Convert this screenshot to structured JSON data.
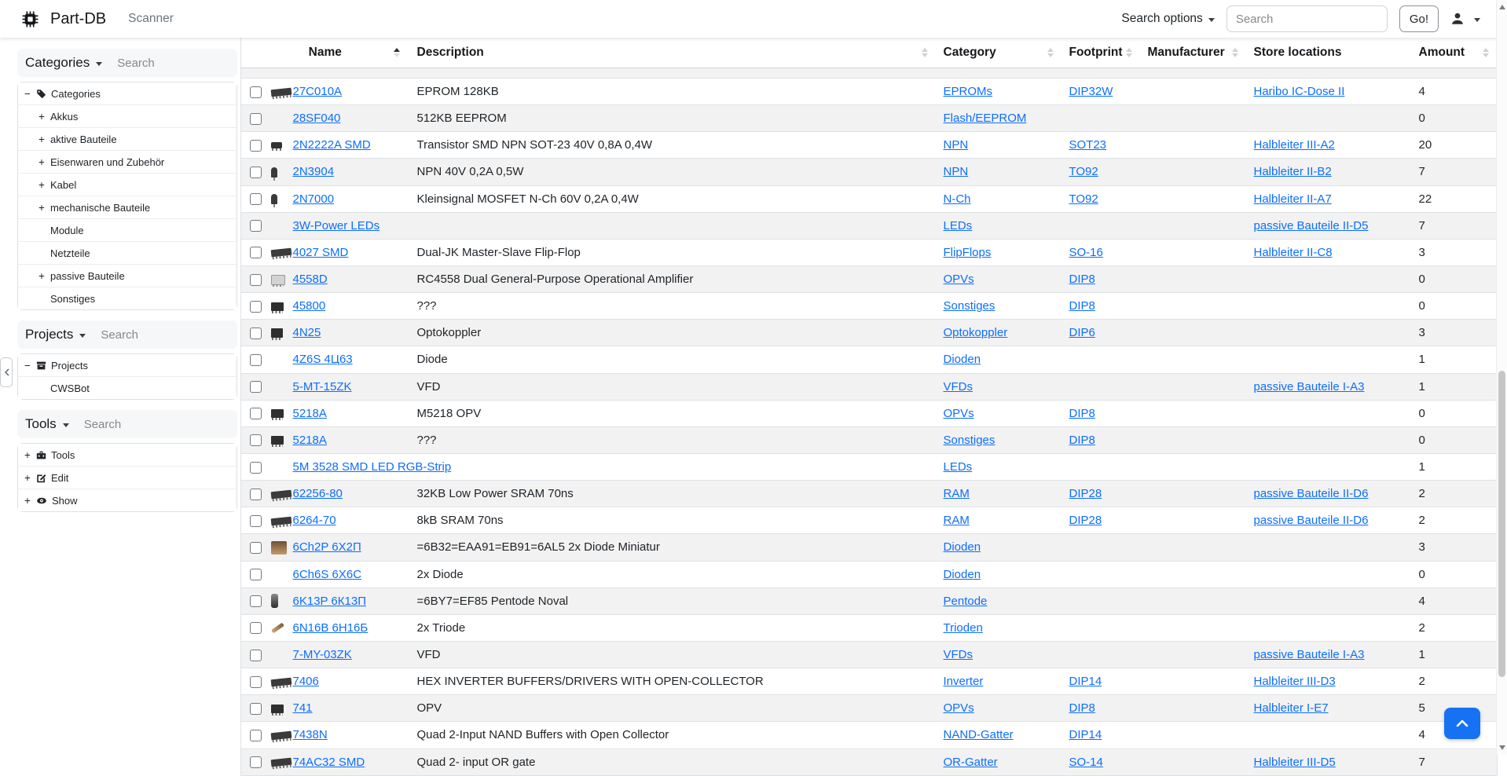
{
  "navbar": {
    "brand": "Part-DB",
    "scanner_label": "Scanner",
    "search_options_label": "Search options",
    "search_placeholder": "Search",
    "go_label": "Go!"
  },
  "sidebar": {
    "sections": [
      {
        "title": "Categories",
        "search_placeholder": "Search",
        "tree": [
          {
            "exp": "minus",
            "icon": "tag-icon",
            "label": "Categories",
            "level": 0
          },
          {
            "exp": "plus",
            "icon": "",
            "label": "Akkus",
            "level": 1
          },
          {
            "exp": "plus",
            "icon": "",
            "label": "aktive Bauteile",
            "level": 1
          },
          {
            "exp": "plus",
            "icon": "",
            "label": "Eisenwaren und Zubehör",
            "level": 1
          },
          {
            "exp": "plus",
            "icon": "",
            "label": "Kabel",
            "level": 1
          },
          {
            "exp": "plus",
            "icon": "",
            "label": "mechanische Bauteile",
            "level": 1
          },
          {
            "exp": "",
            "icon": "",
            "label": "Module",
            "level": 1
          },
          {
            "exp": "",
            "icon": "",
            "label": "Netzteile",
            "level": 1
          },
          {
            "exp": "plus",
            "icon": "",
            "label": "passive Bauteile",
            "level": 1
          },
          {
            "exp": "",
            "icon": "",
            "label": "Sonstiges",
            "level": 1
          }
        ]
      },
      {
        "title": "Projects",
        "search_placeholder": "Search",
        "tree": [
          {
            "exp": "minus",
            "icon": "archive-icon",
            "label": "Projects",
            "level": 0
          },
          {
            "exp": "",
            "icon": "",
            "label": "CWSBot",
            "level": 1
          }
        ]
      },
      {
        "title": "Tools",
        "search_placeholder": "Search",
        "tree": [
          {
            "exp": "plus",
            "icon": "toolbox-icon",
            "label": "Tools",
            "level": 0
          },
          {
            "exp": "plus",
            "icon": "edit-icon",
            "label": "Edit",
            "level": 0
          },
          {
            "exp": "plus",
            "icon": "eye-icon",
            "label": "Show",
            "level": 0
          }
        ]
      }
    ]
  },
  "table": {
    "columns": [
      {
        "label": "Name",
        "sort": "asc"
      },
      {
        "label": "Description",
        "sort": "both"
      },
      {
        "label": "Category",
        "sort": "both"
      },
      {
        "label": "Footprint",
        "sort": "both"
      },
      {
        "label": "Manufacturer",
        "sort": "both"
      },
      {
        "label": "Store locations",
        "sort": "none"
      },
      {
        "label": "Amount",
        "sort": "both"
      }
    ],
    "rows": [
      {
        "name": "27C010A",
        "description": "EPROM 128KB",
        "category": "EPROMs",
        "footprint": "DIP32W",
        "manufacturer": "",
        "store_location": "Haribo IC-Dose II",
        "amount": "4",
        "thumb": "dip-long"
      },
      {
        "name": "28SF040",
        "description": "512KB EEPROM",
        "category": "Flash/EEPROM",
        "footprint": "",
        "manufacturer": "",
        "store_location": "",
        "amount": "0",
        "thumb": ""
      },
      {
        "name": "2N2222A SMD",
        "description": "Transistor SMD NPN SOT-23 40V 0,8A 0,4W",
        "category": "NPN",
        "footprint": "SOT23",
        "manufacturer": "",
        "store_location": "Halbleiter III-A2",
        "amount": "20",
        "thumb": "sot23"
      },
      {
        "name": "2N3904",
        "description": "NPN 40V 0,2A 0,5W",
        "category": "NPN",
        "footprint": "TO92",
        "manufacturer": "",
        "store_location": "Halbleiter II-B2",
        "amount": "7",
        "thumb": "to92"
      },
      {
        "name": "2N7000",
        "description": "Kleinsignal MOSFET N-Ch 60V 0,2A 0,4W",
        "category": "N-Ch",
        "footprint": "TO92",
        "manufacturer": "",
        "store_location": "Halbleiter II-A7",
        "amount": "22",
        "thumb": "to92"
      },
      {
        "name": "3W-Power LEDs",
        "description": "",
        "category": "LEDs",
        "footprint": "",
        "manufacturer": "",
        "store_location": "passive Bauteile II-D5",
        "amount": "7",
        "thumb": ""
      },
      {
        "name": "4027 SMD",
        "description": "Dual-JK Master-Slave Flip-Flop",
        "category": "FlipFlops",
        "footprint": "SO-16",
        "manufacturer": "",
        "store_location": "Halbleiter II-C8",
        "amount": "3",
        "thumb": "dip-long"
      },
      {
        "name": "4558D",
        "description": "RC4558 Dual General-Purpose Operational Amplifier",
        "category": "OPVs",
        "footprint": "DIP8",
        "manufacturer": "",
        "store_location": "",
        "amount": "0",
        "thumb": "dip8-light"
      },
      {
        "name": "45800",
        "description": "???",
        "category": "Sonstiges",
        "footprint": "DIP8",
        "manufacturer": "",
        "store_location": "",
        "amount": "0",
        "thumb": "dip8"
      },
      {
        "name": "4N25",
        "description": "Optokoppler",
        "category": "Optokoppler",
        "footprint": "DIP6",
        "manufacturer": "",
        "store_location": "",
        "amount": "3",
        "thumb": "dip6"
      },
      {
        "name": "4Z6S 4Ц63",
        "description": "Diode",
        "category": "Dioden",
        "footprint": "",
        "manufacturer": "",
        "store_location": "",
        "amount": "1",
        "thumb": ""
      },
      {
        "name": "5-MT-15ZK",
        "description": "VFD",
        "category": "VFDs",
        "footprint": "",
        "manufacturer": "",
        "store_location": "passive Bauteile I-A3",
        "amount": "1",
        "thumb": ""
      },
      {
        "name": "5218A",
        "description": "M5218 OPV",
        "category": "OPVs",
        "footprint": "DIP8",
        "manufacturer": "",
        "store_location": "",
        "amount": "0",
        "thumb": "dip8"
      },
      {
        "name": "5218A",
        "description": "???",
        "category": "Sonstiges",
        "footprint": "DIP8",
        "manufacturer": "",
        "store_location": "",
        "amount": "0",
        "thumb": "dip8"
      },
      {
        "name": "5M 3528 SMD LED RGB-Strip",
        "description": "",
        "category": "LEDs",
        "footprint": "",
        "manufacturer": "",
        "store_location": "",
        "amount": "1",
        "thumb": ""
      },
      {
        "name": "62256-80",
        "description": "32KB Low Power SRAM 70ns",
        "category": "RAM",
        "footprint": "DIP28",
        "manufacturer": "",
        "store_location": "passive Bauteile II-D6",
        "amount": "2",
        "thumb": "dip-long"
      },
      {
        "name": "6264-70",
        "description": "8kB SRAM 70ns",
        "category": "RAM",
        "footprint": "DIP28",
        "manufacturer": "",
        "store_location": "passive Bauteile II-D6",
        "amount": "2",
        "thumb": "dip-long"
      },
      {
        "name": "6Ch2P 6Х2П",
        "description": "=6B32=EAA91=EB91=6AL5 2x Diode Miniatur",
        "category": "Dioden",
        "footprint": "",
        "manufacturer": "",
        "store_location": "",
        "amount": "3",
        "thumb": "tube-photo"
      },
      {
        "name": "6Ch6S 6X6C",
        "description": "2x Diode",
        "category": "Dioden",
        "footprint": "",
        "manufacturer": "",
        "store_location": "",
        "amount": "0",
        "thumb": ""
      },
      {
        "name": "6K13P 6К13П",
        "description": "=6BY7=EF85 Pentode Noval",
        "category": "Pentode",
        "footprint": "",
        "manufacturer": "",
        "store_location": "",
        "amount": "4",
        "thumb": "tube"
      },
      {
        "name": "6N16B 6Н16Б",
        "description": "2x Triode",
        "category": "Trioden",
        "footprint": "",
        "manufacturer": "",
        "store_location": "",
        "amount": "2",
        "thumb": "tube-sm"
      },
      {
        "name": "7-MY-03ZK",
        "description": "VFD",
        "category": "VFDs",
        "footprint": "",
        "manufacturer": "",
        "store_location": "passive Bauteile I-A3",
        "amount": "1",
        "thumb": ""
      },
      {
        "name": "7406",
        "description": "HEX INVERTER BUFFERS/DRIVERS WITH OPEN-COLLECTOR",
        "category": "Inverter",
        "footprint": "DIP14",
        "manufacturer": "",
        "store_location": "Halbleiter III-D3",
        "amount": "2",
        "thumb": "dip-long"
      },
      {
        "name": "741",
        "description": "OPV",
        "category": "OPVs",
        "footprint": "DIP8",
        "manufacturer": "",
        "store_location": "Halbleiter I-E7",
        "amount": "5",
        "thumb": "dip8"
      },
      {
        "name": "7438N",
        "description": "Quad 2-Input NAND Buffers with Open Collector",
        "category": "NAND-Gatter",
        "footprint": "DIP14",
        "manufacturer": "",
        "store_location": "",
        "amount": "4",
        "thumb": "dip-long"
      },
      {
        "name": "74AC32 SMD",
        "description": "Quad 2- input OR gate",
        "category": "OR-Gatter",
        "footprint": "SO-14",
        "manufacturer": "",
        "store_location": "Halbleiter III-D5",
        "amount": "7",
        "thumb": "dip-long"
      }
    ]
  },
  "colors": {
    "link": "#0d6efd",
    "stripe": "#f2f2f2",
    "accent_button": "#1672f2"
  }
}
